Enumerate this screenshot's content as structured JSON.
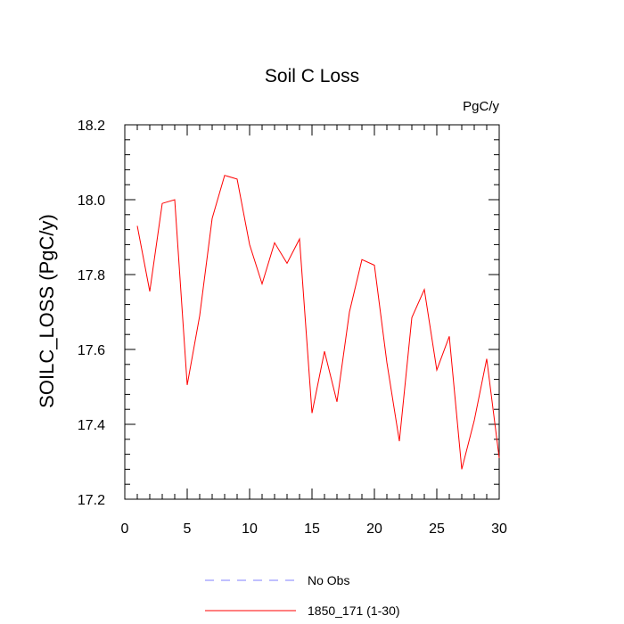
{
  "chart_data": {
    "type": "line",
    "title": "Soil C Loss",
    "units": "PgC/y",
    "ylabel": "SOILC_LOSS  (PgC/y)",
    "xlabel": "",
    "xlim": [
      0,
      30
    ],
    "ylim": [
      17.2,
      18.2
    ],
    "x_ticks": [
      0,
      5,
      10,
      15,
      20,
      25,
      30
    ],
    "x_tick_labels": [
      "0",
      "5",
      "10",
      "15",
      "20",
      "25",
      "30"
    ],
    "y_ticks": [
      17.2,
      17.4,
      17.6,
      17.8,
      18.0,
      18.2
    ],
    "y_tick_labels": [
      "17.2",
      "17.4",
      "17.6",
      "17.8",
      "18.0",
      "18.2"
    ],
    "grid": false,
    "legend_position": "bottom",
    "series": [
      {
        "name": "No Obs",
        "color": "#8080ff",
        "dash": true,
        "x": [],
        "y": []
      },
      {
        "name": "1850_171 (1-30)",
        "color": "#ff0000",
        "dash": false,
        "x": [
          1,
          2,
          3,
          4,
          5,
          6,
          7,
          8,
          9,
          10,
          11,
          12,
          13,
          14,
          15,
          16,
          17,
          18,
          19,
          20,
          21,
          22,
          23,
          24,
          25,
          26,
          27,
          28,
          29,
          30
        ],
        "y": [
          17.93,
          17.755,
          17.99,
          18.0,
          17.505,
          17.69,
          17.95,
          18.065,
          18.055,
          17.88,
          17.775,
          17.885,
          17.83,
          17.895,
          17.43,
          17.595,
          17.46,
          17.7,
          17.84,
          17.825,
          17.565,
          17.355,
          17.685,
          17.76,
          17.545,
          17.635,
          17.28,
          17.41,
          17.575,
          17.31
        ]
      }
    ]
  }
}
